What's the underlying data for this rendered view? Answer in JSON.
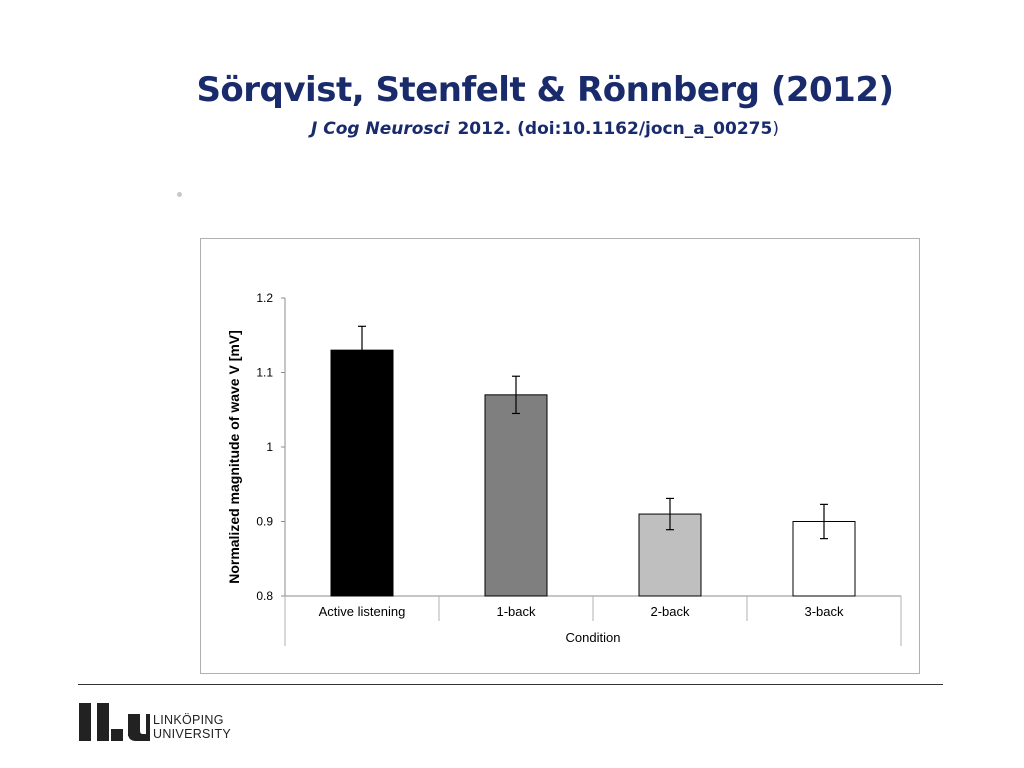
{
  "slide": {
    "title": "Sörqvist, Stenfelt & Rönnberg (2012)",
    "journal": "J Cog Neurosci",
    "citation": "2012. (doi:10.1162/jocn_a_00275",
    "citation_close": ")"
  },
  "logo": {
    "line1": "LINKÖPING",
    "line2": "UNIVERSITY"
  },
  "chart_data": {
    "type": "bar",
    "categories": [
      "Active listening",
      "1-back",
      "2-back",
      "3-back"
    ],
    "values": [
      1.13,
      1.07,
      0.91,
      0.9
    ],
    "error_bars": [
      0.032,
      0.025,
      0.021,
      0.023
    ],
    "bar_colors": [
      "#000000",
      "#7f7f7f",
      "#bfbfbf",
      "#ffffff"
    ],
    "title": "",
    "xlabel": "Condition",
    "ylabel": "Normalized magnitude of wave V [mV]",
    "ylim": [
      0.8,
      1.2
    ],
    "yticks": [
      0.8,
      0.9,
      1.0,
      1.1,
      1.2
    ],
    "ytick_labels": [
      "0.8",
      "0.9",
      "1",
      "1.1",
      "1.2"
    ],
    "grid": false,
    "legend": "none"
  }
}
